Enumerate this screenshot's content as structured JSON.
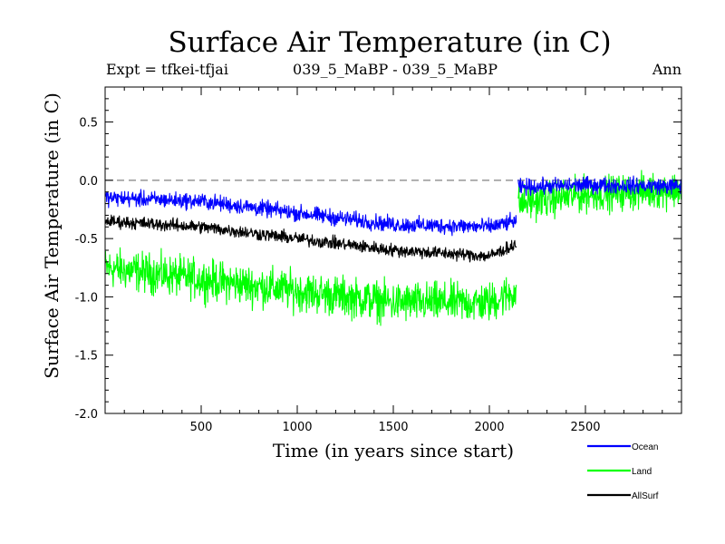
{
  "chart_data": {
    "type": "line",
    "title": "Surface Air Temperature (in C)",
    "subtitle_left": "Expt = tfkei-tfjai",
    "subtitle_center": "039_5_MaBP - 039_5_MaBP",
    "subtitle_right": "Ann",
    "xlabel": "Time (in years since start)",
    "ylabel": "Surface Air Temperature (in C)",
    "xlim": [
      0,
      3000
    ],
    "ylim": [
      -2.0,
      0.8
    ],
    "xticks": [
      500,
      1000,
      1500,
      2000,
      2500
    ],
    "xtick_labels": [
      "500",
      "1000",
      "1500",
      "2000",
      "2500"
    ],
    "yticks": [
      0.5,
      0.0,
      -0.5,
      -1.0,
      -1.5,
      -2.0
    ],
    "ytick_labels": [
      "0.5",
      "0.0",
      "-0.5",
      "-1.0",
      "-1.5",
      "-2.0"
    ],
    "reference_line": {
      "y": 0.0,
      "style": "dashed",
      "color": "#808080"
    },
    "legend_position": "bottom-right, below plot",
    "series": [
      {
        "name": "Land",
        "color": "#00ff00",
        "segments": [
          {
            "x": [
              0,
              500,
              1000,
              1500,
              2000,
              2140
            ],
            "mean": [
              -0.75,
              -0.85,
              -0.95,
              -1.05,
              -1.05,
              -0.95
            ],
            "noise_amplitude": 0.25
          },
          {
            "x": [
              2150,
              2500,
              3000
            ],
            "mean": [
              -0.2,
              -0.12,
              -0.08
            ],
            "noise_amplitude": 0.22
          }
        ]
      },
      {
        "name": "Ocean",
        "color": "#0000ff",
        "segments": [
          {
            "x": [
              0,
              500,
              1000,
              1500,
              2000,
              2140
            ],
            "mean": [
              -0.15,
              -0.18,
              -0.28,
              -0.38,
              -0.4,
              -0.35
            ],
            "noise_amplitude": 0.1
          },
          {
            "x": [
              2150,
              2500,
              3000
            ],
            "mean": [
              -0.06,
              -0.04,
              -0.05
            ],
            "noise_amplitude": 0.1
          }
        ]
      },
      {
        "name": "AllSurf",
        "color": "#000000",
        "segments": [
          {
            "x": [
              0,
              500,
              1000,
              1500,
              2000,
              2140
            ],
            "mean": [
              -0.35,
              -0.4,
              -0.5,
              -0.6,
              -0.65,
              -0.55
            ],
            "noise_amplitude": 0.08
          }
        ]
      }
    ],
    "legend": [
      {
        "name": "Ocean",
        "color": "#0000ff"
      },
      {
        "name": "Land",
        "color": "#00ff00"
      },
      {
        "name": "AllSurf",
        "color": "#000000"
      }
    ]
  }
}
